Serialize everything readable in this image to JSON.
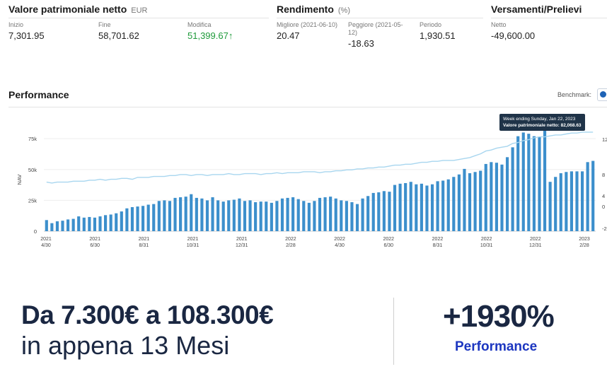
{
  "stats": {
    "net_worth": {
      "title": "Valore patrimoniale netto",
      "unit": "EUR",
      "items": [
        {
          "label": "Inizio",
          "value": "7,301.95"
        },
        {
          "label": "Fine",
          "value": "58,701.62"
        },
        {
          "label": "Modifica",
          "value": "51,399.67↑"
        }
      ]
    },
    "returns": {
      "title": "Rendimento",
      "unit": "(%)",
      "items": [
        {
          "label": "Migliore (2021-06-10)",
          "value": "20.47"
        },
        {
          "label": "Peggiore (2021-05-12)",
          "value": "-18.63"
        },
        {
          "label": "Periodo",
          "value": "1,930.51"
        }
      ]
    },
    "deposits": {
      "title": "Versamenti/Prelievi",
      "items": [
        {
          "label": "Netto",
          "value": "-49,600.00"
        }
      ]
    }
  },
  "performance": {
    "title": "Performance",
    "benchmark_label": "Benchmark:"
  },
  "tooltip": {
    "line1": "Week ending Sunday, Jan 22, 2023",
    "line2": "Valore patrimoniale netto: 82,068.63"
  },
  "chart_data": {
    "type": "bar",
    "ylabel": "NAV",
    "ylim": [
      0,
      90000
    ],
    "y_ticks": [
      "75k",
      "50k",
      "25k",
      "0"
    ],
    "right_ticks": [
      "12",
      "8",
      "4",
      "0",
      "-2"
    ],
    "x_ticks": [
      {
        "year": "2021",
        "date": "4/30"
      },
      {
        "year": "2021",
        "date": "6/30"
      },
      {
        "year": "2021",
        "date": "8/31"
      },
      {
        "year": "2021",
        "date": "10/31"
      },
      {
        "year": "2021",
        "date": "12/31"
      },
      {
        "year": "2022",
        "date": "2/28"
      },
      {
        "year": "2022",
        "date": "4/30"
      },
      {
        "year": "2022",
        "date": "6/30"
      },
      {
        "year": "2022",
        "date": "8/31"
      },
      {
        "year": "2022",
        "date": "10/31"
      },
      {
        "year": "2022",
        "date": "12/31"
      },
      {
        "year": "2023",
        "date": "2/28"
      }
    ],
    "bars": [
      9000,
      6500,
      8000,
      8500,
      9500,
      10000,
      12000,
      11000,
      11500,
      11000,
      12000,
      13000,
      13500,
      14500,
      16000,
      18500,
      19500,
      20000,
      20500,
      21500,
      22000,
      24500,
      25000,
      24500,
      27000,
      27500,
      28000,
      30000,
      27000,
      26500,
      25000,
      27500,
      25000,
      24000,
      25000,
      25500,
      26500,
      24500,
      25000,
      23500,
      24000,
      24000,
      23000,
      24500,
      26500,
      27000,
      27500,
      26000,
      24500,
      23000,
      24500,
      27000,
      27500,
      28000,
      26500,
      25000,
      24500,
      23500,
      22000,
      26500,
      28500,
      31000,
      31500,
      32500,
      32000,
      37500,
      38500,
      39000,
      40000,
      38000,
      38500,
      37000,
      38000,
      40500,
      41000,
      42000,
      44000,
      46000,
      50500,
      47000,
      48000,
      49000,
      54500,
      56000,
      55500,
      54000,
      60000,
      68000,
      77000,
      80000,
      79000,
      77000,
      76500,
      82069,
      40000,
      44000,
      47000,
      48000,
      48500,
      48500,
      48500,
      56000,
      57000
    ],
    "line": [
      0.52,
      0.51,
      0.52,
      0.52,
      0.52,
      0.53,
      0.53,
      0.53,
      0.54,
      0.54,
      0.55,
      0.54,
      0.55,
      0.55,
      0.56,
      0.56,
      0.55,
      0.57,
      0.57,
      0.57,
      0.58,
      0.58,
      0.58,
      0.59,
      0.59,
      0.6,
      0.6,
      0.59,
      0.6,
      0.6,
      0.59,
      0.6,
      0.6,
      0.6,
      0.61,
      0.6,
      0.6,
      0.61,
      0.61,
      0.61,
      0.6,
      0.61,
      0.61,
      0.62,
      0.61,
      0.62,
      0.62,
      0.62,
      0.63,
      0.63,
      0.63,
      0.62,
      0.63,
      0.63,
      0.64,
      0.64,
      0.65,
      0.65,
      0.66,
      0.66,
      0.67,
      0.67,
      0.68,
      0.68,
      0.69,
      0.7,
      0.7,
      0.71,
      0.71,
      0.72,
      0.73,
      0.73,
      0.74,
      0.74,
      0.75,
      0.75,
      0.75,
      0.76,
      0.77,
      0.78,
      0.8,
      0.82,
      0.85,
      0.86,
      0.88,
      0.89,
      0.9,
      0.93,
      0.94,
      0.96,
      0.97,
      0.99,
      1.0,
      1.0,
      1.01,
      1.02,
      1.02,
      1.03,
      1.04,
      1.04,
      1.05,
      1.05,
      1.05
    ]
  },
  "promo": {
    "line1": "Da 7.300€ a 108.300€",
    "line2": "in appena 13 Mesi",
    "percent": "+1930%",
    "percent_label": "Performance"
  }
}
